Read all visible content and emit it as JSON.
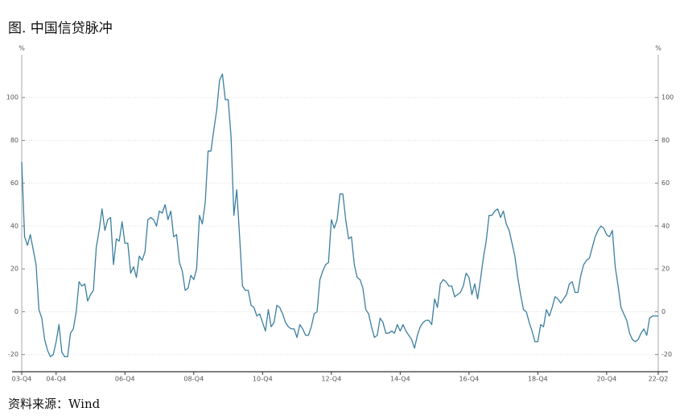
{
  "chart_data": {
    "type": "line",
    "title": "图. 中国信贷脉冲",
    "source": "资料来源：Wind",
    "y_unit": "%",
    "y2_unit": "%",
    "color": "#3b7f9f",
    "grid": true,
    "ylim": [
      -28,
      120
    ],
    "yticks": [
      -20,
      0,
      20,
      40,
      60,
      80,
      100
    ],
    "y2lim": [
      -28,
      120
    ],
    "y2ticks": [
      -20,
      0,
      20,
      40,
      60,
      80,
      100
    ],
    "categories": [
      "03-Q4",
      null,
      null,
      null,
      null,
      null,
      null,
      null,
      null,
      null,
      null,
      null,
      "04-Q4",
      null,
      null,
      null,
      null,
      null,
      null,
      null,
      null,
      null,
      null,
      null,
      null,
      null,
      null,
      null,
      null,
      null,
      null,
      null,
      null,
      null,
      null,
      null,
      "06-Q4",
      null,
      null,
      null,
      null,
      null,
      null,
      null,
      null,
      null,
      null,
      null,
      null,
      null,
      null,
      null,
      null,
      null,
      null,
      null,
      null,
      null,
      null,
      null,
      "08-Q4",
      null,
      null,
      null,
      null,
      null,
      null,
      null,
      null,
      null,
      null,
      null,
      null,
      null,
      null,
      null,
      null,
      null,
      null,
      null,
      null,
      null,
      null,
      null,
      "10-Q4",
      null,
      null,
      null,
      null,
      null,
      null,
      null,
      null,
      null,
      null,
      null,
      null,
      null,
      null,
      null,
      null,
      null,
      null,
      null,
      null,
      null,
      null,
      null,
      "12-Q4",
      null,
      null,
      null,
      null,
      null,
      null,
      null,
      null,
      null,
      null,
      null,
      null,
      null,
      null,
      null,
      null,
      null,
      null,
      null,
      null,
      null,
      null,
      null,
      "14-Q4",
      null,
      null,
      null,
      null,
      null,
      null,
      null,
      null,
      null,
      null,
      null,
      null,
      null,
      null,
      null,
      null,
      null,
      null,
      null,
      null,
      null,
      null,
      null,
      "16-Q4",
      null,
      null,
      null,
      null,
      null,
      null,
      null,
      null,
      null,
      null,
      null,
      null,
      null,
      null,
      null,
      null,
      null,
      null,
      null,
      null,
      null,
      null,
      null,
      "18-Q4",
      null,
      null,
      null,
      null,
      null,
      null,
      null,
      null,
      null,
      null,
      null,
      null,
      null,
      null,
      null,
      null,
      null,
      null,
      null,
      null,
      null,
      null,
      null,
      "20-Q4",
      null,
      null,
      null,
      null,
      null,
      null,
      null,
      null,
      null,
      null,
      null,
      null,
      null,
      null,
      null,
      null,
      null,
      "22-Q2"
    ],
    "values": [
      70,
      35,
      31,
      36,
      29,
      22,
      1,
      -3,
      -13,
      -18,
      -21,
      -20,
      -14,
      -6,
      -19,
      -21,
      -21,
      -10,
      -8,
      0,
      14,
      12,
      13,
      5,
      8,
      10,
      30,
      38,
      48,
      38,
      43,
      44,
      22,
      34,
      33,
      42,
      32,
      32,
      18,
      21,
      16,
      26,
      24,
      28,
      43,
      44,
      43,
      40,
      47,
      46,
      50,
      43,
      47,
      35,
      36,
      23,
      19,
      10,
      11,
      17,
      15,
      20,
      45,
      41,
      51,
      75,
      75,
      85,
      94,
      108,
      111,
      99,
      99,
      82,
      45,
      57,
      35,
      12,
      10,
      10,
      3,
      2,
      -2,
      -1,
      -5,
      -9,
      1,
      -7,
      -5,
      3,
      2,
      -1,
      -5,
      -7,
      -8,
      -8,
      -12,
      -6,
      -8,
      -11,
      -11,
      -7,
      -1,
      0,
      15,
      19,
      22,
      23,
      43,
      39,
      43,
      55,
      55,
      43,
      34,
      35,
      22,
      16,
      15,
      11,
      1,
      -1,
      -7,
      -12,
      -11,
      -3,
      -5,
      -10,
      -10,
      -9,
      -10,
      -6,
      -9,
      -6,
      -9,
      -11,
      -13,
      -17,
      -11,
      -7,
      -5,
      -4,
      -4,
      -6,
      6,
      2,
      13,
      15,
      14,
      12,
      12,
      7,
      8,
      9,
      12,
      18,
      16,
      8,
      13,
      6,
      15,
      25,
      33,
      45,
      45,
      47,
      48,
      44,
      47,
      41,
      38,
      32,
      26,
      16,
      8,
      1,
      0,
      -5,
      -9,
      -14,
      -14,
      -6,
      -7,
      1,
      -2,
      2,
      7,
      6,
      4,
      6,
      8,
      13,
      14,
      9,
      9,
      17,
      22,
      24,
      25,
      30,
      35,
      38,
      40,
      39,
      36,
      35,
      38,
      21,
      12,
      2,
      -1,
      -4,
      -10,
      -13,
      -14,
      -13,
      -10,
      -8,
      -11,
      -3,
      -2,
      -2,
      -2
    ]
  }
}
